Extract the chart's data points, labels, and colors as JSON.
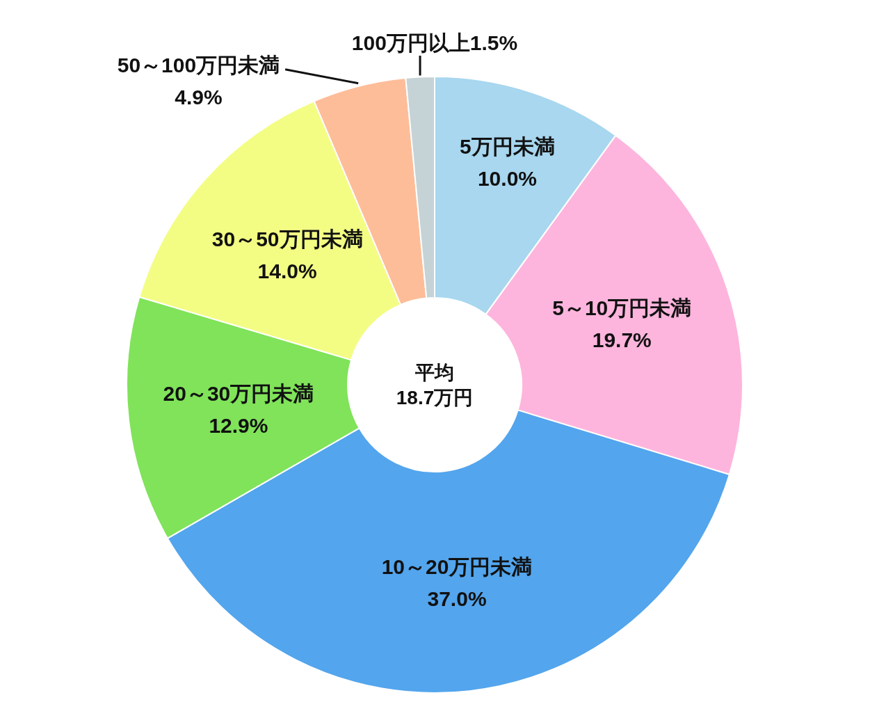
{
  "chart_data": {
    "type": "donut",
    "categories": [
      "5万円未満",
      "5～10万円未満",
      "10～20万円未満",
      "20～30万円未満",
      "30～50万円未満",
      "50～100万円未満",
      "100万円以上"
    ],
    "values": [
      10.0,
      19.7,
      37.0,
      12.9,
      14.0,
      4.9,
      1.5
    ],
    "colors": [
      "#a8d7ef",
      "#fdb5dd",
      "#53a5ed",
      "#80e35a",
      "#f3fd84",
      "#fdbd99",
      "#c5d3d6"
    ],
    "value_labels": [
      "10.0%",
      "19.7%",
      "37.0%",
      "12.9%",
      "14.0%",
      "4.9%",
      "1.5%"
    ],
    "annotations": [
      "平均",
      "18.7万円"
    ]
  }
}
